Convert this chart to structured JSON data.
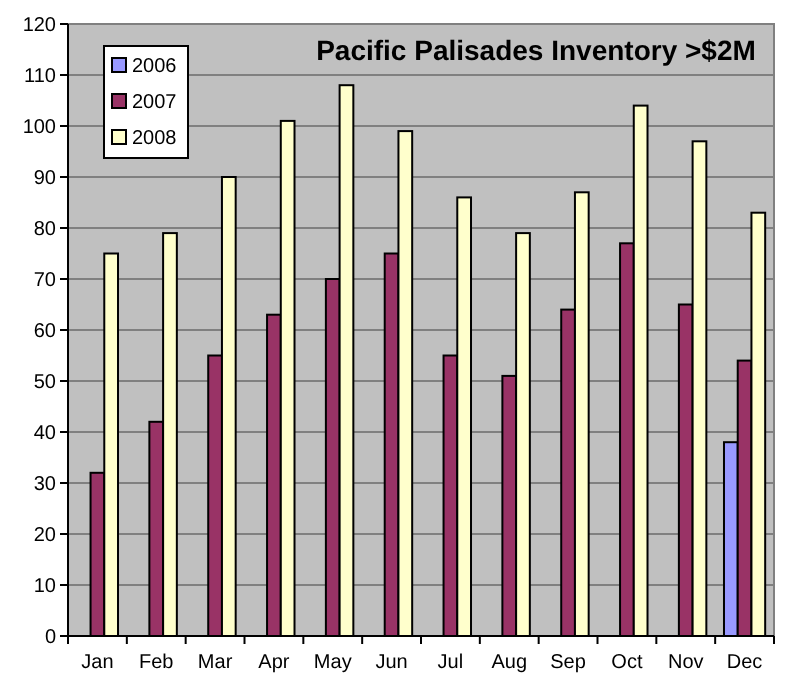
{
  "chart_data": {
    "type": "bar",
    "title": "Pacific Palisades Inventory >$2M",
    "categories": [
      "Jan",
      "Feb",
      "Mar",
      "Apr",
      "May",
      "Jun",
      "Jul",
      "Aug",
      "Sep",
      "Oct",
      "Nov",
      "Dec"
    ],
    "series": [
      {
        "name": "2006",
        "color": "#9999ff",
        "values": [
          null,
          null,
          null,
          null,
          null,
          null,
          null,
          null,
          null,
          null,
          null,
          38
        ]
      },
      {
        "name": "2007",
        "color": "#993366",
        "values": [
          32,
          42,
          55,
          63,
          70,
          75,
          55,
          51,
          64,
          77,
          65,
          54
        ]
      },
      {
        "name": "2008",
        "color": "#ffffcc",
        "values": [
          75,
          79,
          90,
          101,
          108,
          99,
          86,
          79,
          87,
          104,
          97,
          83
        ]
      }
    ],
    "ylim": [
      0,
      120
    ],
    "yticks": [
      0,
      10,
      20,
      30,
      40,
      50,
      60,
      70,
      80,
      90,
      100,
      110,
      120
    ],
    "grid": "y",
    "legend": "top left"
  }
}
